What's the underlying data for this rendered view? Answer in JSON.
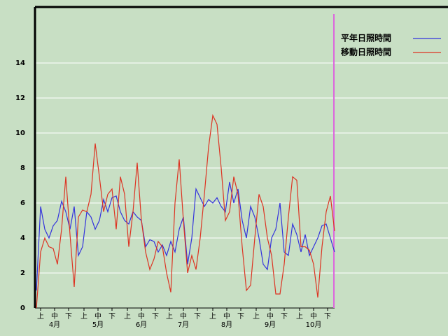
{
  "chart_data": {
    "type": "line",
    "x": [
      0,
      3,
      6,
      9,
      12,
      15,
      18,
      21,
      24,
      27,
      30,
      33,
      36,
      39,
      42,
      45,
      48,
      51,
      54,
      57,
      60,
      63,
      66,
      69,
      72,
      75,
      78,
      81,
      84,
      87,
      90,
      93,
      96,
      99,
      102,
      105,
      108,
      111,
      114,
      117,
      120,
      123,
      126,
      129,
      132,
      135,
      138,
      141,
      144,
      147,
      150,
      153,
      156,
      159,
      162,
      165,
      168,
      171,
      174,
      177,
      180,
      183,
      186,
      189,
      192,
      195,
      198,
      201,
      204,
      207,
      210,
      213
    ],
    "xlim": [
      0,
      213
    ],
    "xticks": [
      {
        "value": 3,
        "label": "上"
      },
      {
        "value": 13,
        "label": "中"
      },
      {
        "value": 23,
        "label": "下"
      },
      {
        "value": 34,
        "label": "上"
      },
      {
        "value": 44,
        "label": "中"
      },
      {
        "value": 54,
        "label": "下"
      },
      {
        "value": 65,
        "label": "上"
      },
      {
        "value": 75,
        "label": "中"
      },
      {
        "value": 85,
        "label": "下"
      },
      {
        "value": 95,
        "label": "上"
      },
      {
        "value": 105,
        "label": "中"
      },
      {
        "value": 115,
        "label": "下"
      },
      {
        "value": 126,
        "label": "上"
      },
      {
        "value": 136,
        "label": "中"
      },
      {
        "value": 146,
        "label": "下"
      },
      {
        "value": 157,
        "label": "上"
      },
      {
        "value": 167,
        "label": "中"
      },
      {
        "value": 177,
        "label": "下"
      },
      {
        "value": 188,
        "label": "上"
      },
      {
        "value": 198,
        "label": "中"
      },
      {
        "value": 208,
        "label": "下"
      }
    ],
    "month_ticks": [
      {
        "value": 13,
        "label": "4月"
      },
      {
        "value": 44,
        "label": "5月"
      },
      {
        "value": 75,
        "label": "6月"
      },
      {
        "value": 105,
        "label": "7月"
      },
      {
        "value": 136,
        "label": "8月"
      },
      {
        "value": 167,
        "label": "9月"
      },
      {
        "value": 198,
        "label": "10月"
      }
    ],
    "ylim": [
      0,
      17.2
    ],
    "yticks": [
      0,
      2,
      4,
      6,
      8,
      10,
      12,
      14
    ],
    "grid": true,
    "series": [
      {
        "name": "平年日照時間",
        "color": "#3333dd",
        "values": [
          1,
          5.8,
          4.5,
          4.0,
          4.7,
          5.0,
          6.1,
          5.5,
          4.5,
          5.8,
          3.0,
          3.5,
          5.5,
          5.2,
          4.5,
          5.0,
          6.2,
          5.5,
          6.3,
          6.4,
          5.5,
          5.0,
          4.8,
          5.5,
          5.2,
          5.0,
          3.5,
          3.9,
          3.8,
          3.2,
          3.6,
          3.0,
          3.8,
          3.2,
          4.5,
          5.2,
          2.5,
          4.0,
          6.8,
          6.3,
          5.8,
          6.2,
          6.0,
          6.3,
          5.8,
          5.5,
          7.2,
          6.0,
          6.8,
          5.0,
          4.0,
          5.8,
          5.2,
          4.0,
          2.5,
          2.2,
          4.0,
          4.5,
          6.0,
          3.2,
          3.0,
          4.8,
          4.2,
          3.2,
          4.2,
          3.0,
          3.5,
          4.0,
          4.7,
          4.8,
          4.0,
          3.2
        ]
      },
      {
        "name": "移動日照時間",
        "color": "#dd3322",
        "values": [
          0,
          3.2,
          4.0,
          3.5,
          3.4,
          2.5,
          4.5,
          7.5,
          4.2,
          1.2,
          5.2,
          5.6,
          5.5,
          6.5,
          9.4,
          7.5,
          5.5,
          6.5,
          6.8,
          4.5,
          7.5,
          6.5,
          3.5,
          5.5,
          8.3,
          5.0,
          3.2,
          2.2,
          2.8,
          3.8,
          3.5,
          2.0,
          0.9,
          6.0,
          8.5,
          5.0,
          2.0,
          3.0,
          2.2,
          4.0,
          6.5,
          9.2,
          11.0,
          10.5,
          8.0,
          5.0,
          5.5,
          7.5,
          6.5,
          3.5,
          1.0,
          1.3,
          4.0,
          6.5,
          5.8,
          4.0,
          3.0,
          0.8,
          0.8,
          2.5,
          5.2,
          7.5,
          7.3,
          3.5,
          3.5,
          3.3,
          2.5,
          0.6,
          3.5,
          5.5,
          6.4,
          4.4
        ]
      }
    ]
  }
}
